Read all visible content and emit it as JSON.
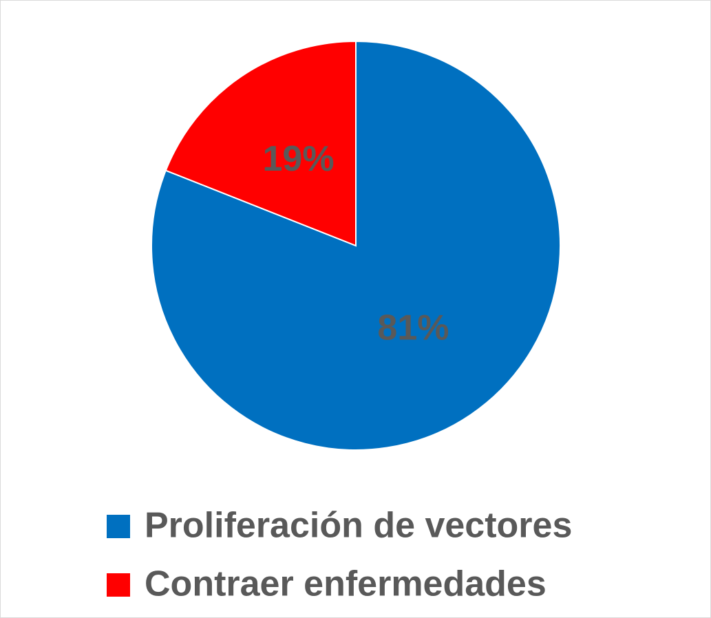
{
  "chart_data": {
    "type": "pie",
    "categories": [
      "Proliferación de vectores",
      "Contraer enfermedades"
    ],
    "values": [
      81,
      19
    ],
    "value_labels": [
      "81%",
      "19%"
    ],
    "colors": [
      "#0070c0",
      "#ff0000"
    ]
  }
}
